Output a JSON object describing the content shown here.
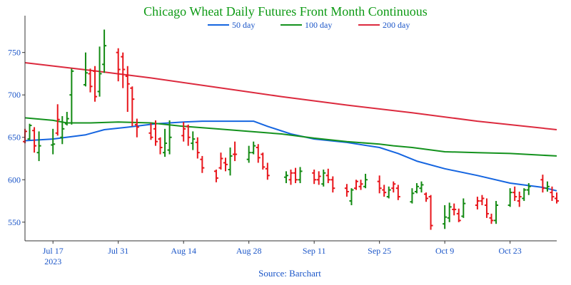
{
  "chart_data": {
    "type": "line",
    "title": "Chicago Wheat Daily Futures Front Month Continuous",
    "source": "Source: Barchart",
    "xlabel": "",
    "ylabel": "",
    "ylim": [
      528,
      785
    ],
    "yticks": [
      550,
      600,
      650,
      700,
      750
    ],
    "xlim": [
      "2023-07-11",
      "2023-11-02"
    ],
    "xticks": [
      {
        "date": "2023-07-17",
        "label": "Jul 17",
        "sublabel": "2023"
      },
      {
        "date": "2023-07-31",
        "label": "Jul 31"
      },
      {
        "date": "2023-08-14",
        "label": "Aug 14"
      },
      {
        "date": "2023-08-28",
        "label": "Aug 28"
      },
      {
        "date": "2023-09-11",
        "label": "Sep 11"
      },
      {
        "date": "2023-09-25",
        "label": "Sep 25"
      },
      {
        "date": "2023-10-09",
        "label": "Oct 9"
      },
      {
        "date": "2023-10-23",
        "label": "Oct 23"
      }
    ],
    "grid": false,
    "legend_position": "top-right",
    "up_color": "#138a13",
    "down_color": "#e8151b",
    "series": [
      {
        "name": "50 day",
        "color": "#1565e0",
        "points": [
          [
            "2023-07-11",
            646
          ],
          [
            "2023-07-17",
            648
          ],
          [
            "2023-07-24",
            653
          ],
          [
            "2023-07-28",
            659
          ],
          [
            "2023-08-02",
            662
          ],
          [
            "2023-08-08",
            666
          ],
          [
            "2023-08-14",
            668
          ],
          [
            "2023-08-18",
            669
          ],
          [
            "2023-08-25",
            669
          ],
          [
            "2023-08-29",
            669
          ],
          [
            "2023-09-01",
            663
          ],
          [
            "2023-09-06",
            654
          ],
          [
            "2023-09-11",
            648
          ],
          [
            "2023-09-18",
            644
          ],
          [
            "2023-09-25",
            638
          ],
          [
            "2023-09-29",
            631
          ],
          [
            "2023-10-03",
            622
          ],
          [
            "2023-10-09",
            613
          ],
          [
            "2023-10-16",
            605
          ],
          [
            "2023-10-23",
            596
          ],
          [
            "2023-10-30",
            591
          ],
          [
            "2023-11-02",
            587
          ]
        ]
      },
      {
        "name": "100 day",
        "color": "#14921e",
        "points": [
          [
            "2023-07-11",
            673
          ],
          [
            "2023-07-17",
            670
          ],
          [
            "2023-07-20",
            667
          ],
          [
            "2023-07-25",
            667
          ],
          [
            "2023-07-31",
            668
          ],
          [
            "2023-08-07",
            667
          ],
          [
            "2023-08-14",
            663
          ],
          [
            "2023-08-21",
            660
          ],
          [
            "2023-08-28",
            657
          ],
          [
            "2023-09-04",
            654
          ],
          [
            "2023-09-11",
            649
          ],
          [
            "2023-09-18",
            645
          ],
          [
            "2023-09-25",
            642
          ],
          [
            "2023-09-28",
            640
          ],
          [
            "2023-10-02",
            638
          ],
          [
            "2023-10-09",
            633
          ],
          [
            "2023-10-16",
            632
          ],
          [
            "2023-10-23",
            631
          ],
          [
            "2023-11-02",
            628
          ]
        ]
      },
      {
        "name": "200 day",
        "color": "#dc2a3e",
        "points": [
          [
            "2023-07-11",
            738
          ],
          [
            "2023-07-25",
            729
          ],
          [
            "2023-08-07",
            720
          ],
          [
            "2023-08-21",
            709
          ],
          [
            "2023-09-04",
            698
          ],
          [
            "2023-09-18",
            688
          ],
          [
            "2023-10-02",
            679
          ],
          [
            "2023-10-16",
            669
          ],
          [
            "2023-11-02",
            659
          ]
        ]
      }
    ],
    "ohlc": [
      {
        "date": "2023-07-11",
        "o": 645,
        "h": 660,
        "l": 643,
        "c": 657,
        "up": false
      },
      {
        "date": "2023-07-12",
        "o": 648,
        "h": 666,
        "l": 647,
        "c": 664,
        "up": true
      },
      {
        "date": "2023-07-13",
        "o": 658,
        "h": 662,
        "l": 632,
        "c": 640,
        "up": false
      },
      {
        "date": "2023-07-14",
        "o": 632,
        "h": 657,
        "l": 622,
        "c": 640,
        "up": true
      },
      {
        "date": "2023-07-17",
        "o": 641,
        "h": 660,
        "l": 630,
        "c": 642,
        "up": true
      },
      {
        "date": "2023-07-18",
        "o": 655,
        "h": 689,
        "l": 652,
        "c": 671,
        "up": false
      },
      {
        "date": "2023-07-19",
        "o": 650,
        "h": 675,
        "l": 642,
        "c": 660,
        "up": true
      },
      {
        "date": "2023-07-20",
        "o": 666,
        "h": 680,
        "l": 664,
        "c": 672,
        "up": true
      },
      {
        "date": "2023-07-21",
        "o": 700,
        "h": 731,
        "l": 665,
        "c": 728,
        "up": true
      },
      {
        "date": "2023-07-24",
        "o": 712,
        "h": 750,
        "l": 710,
        "c": 726,
        "up": true
      },
      {
        "date": "2023-07-25",
        "o": 725,
        "h": 731,
        "l": 703,
        "c": 710,
        "up": false
      },
      {
        "date": "2023-07-26",
        "o": 728,
        "h": 734,
        "l": 692,
        "c": 698,
        "up": false
      },
      {
        "date": "2023-07-27",
        "o": 704,
        "h": 757,
        "l": 698,
        "c": 725,
        "up": true
      },
      {
        "date": "2023-07-28",
        "o": 736,
        "h": 777,
        "l": 726,
        "c": 758,
        "up": true
      },
      {
        "date": "2023-07-31",
        "o": 750,
        "h": 755,
        "l": 716,
        "c": 730,
        "up": false
      },
      {
        "date": "2023-08-01",
        "o": 745,
        "h": 750,
        "l": 708,
        "c": 730,
        "up": false
      },
      {
        "date": "2023-08-02",
        "o": 722,
        "h": 734,
        "l": 680,
        "c": 713,
        "up": false
      },
      {
        "date": "2023-08-03",
        "o": 708,
        "h": 710,
        "l": 663,
        "c": 695,
        "up": false
      },
      {
        "date": "2023-08-04",
        "o": 665,
        "h": 672,
        "l": 650,
        "c": 662,
        "up": false
      },
      {
        "date": "2023-08-07",
        "o": 655,
        "h": 667,
        "l": 647,
        "c": 650,
        "up": false
      },
      {
        "date": "2023-08-08",
        "o": 660,
        "h": 670,
        "l": 640,
        "c": 645,
        "up": false
      },
      {
        "date": "2023-08-09",
        "o": 648,
        "h": 650,
        "l": 630,
        "c": 638,
        "up": false
      },
      {
        "date": "2023-08-10",
        "o": 632,
        "h": 660,
        "l": 627,
        "c": 643,
        "up": true
      },
      {
        "date": "2023-08-11",
        "o": 635,
        "h": 670,
        "l": 630,
        "c": 650,
        "up": true
      },
      {
        "date": "2023-08-14",
        "o": 652,
        "h": 668,
        "l": 645,
        "c": 660,
        "up": false
      },
      {
        "date": "2023-08-15",
        "o": 663,
        "h": 665,
        "l": 640,
        "c": 650,
        "up": false
      },
      {
        "date": "2023-08-16",
        "o": 643,
        "h": 657,
        "l": 635,
        "c": 648,
        "up": true
      },
      {
        "date": "2023-08-17",
        "o": 644,
        "h": 650,
        "l": 625,
        "c": 632,
        "up": false
      },
      {
        "date": "2023-08-18",
        "o": 624,
        "h": 628,
        "l": 608,
        "c": 614,
        "up": false
      },
      {
        "date": "2023-08-21",
        "o": 610,
        "h": 612,
        "l": 597,
        "c": 602,
        "up": false
      },
      {
        "date": "2023-08-22",
        "o": 614,
        "h": 632,
        "l": 612,
        "c": 625,
        "up": false
      },
      {
        "date": "2023-08-23",
        "o": 620,
        "h": 626,
        "l": 610,
        "c": 618,
        "up": false
      },
      {
        "date": "2023-08-24",
        "o": 612,
        "h": 638,
        "l": 605,
        "c": 628,
        "up": true
      },
      {
        "date": "2023-08-25",
        "o": 630,
        "h": 645,
        "l": 622,
        "c": 630,
        "up": false
      },
      {
        "date": "2023-08-28",
        "o": 624,
        "h": 640,
        "l": 620,
        "c": 632,
        "up": true
      },
      {
        "date": "2023-08-29",
        "o": 632,
        "h": 645,
        "l": 630,
        "c": 640,
        "up": true
      },
      {
        "date": "2023-08-30",
        "o": 638,
        "h": 642,
        "l": 620,
        "c": 626,
        "up": false
      },
      {
        "date": "2023-08-31",
        "o": 630,
        "h": 632,
        "l": 612,
        "c": 615,
        "up": false
      },
      {
        "date": "2023-09-01",
        "o": 613,
        "h": 620,
        "l": 600,
        "c": 605,
        "up": false
      },
      {
        "date": "2023-09-05",
        "o": 603,
        "h": 610,
        "l": 596,
        "c": 605,
        "up": true
      },
      {
        "date": "2023-09-06",
        "o": 600,
        "h": 612,
        "l": 594,
        "c": 608,
        "up": false
      },
      {
        "date": "2023-09-07",
        "o": 608,
        "h": 614,
        "l": 596,
        "c": 600,
        "up": false
      },
      {
        "date": "2023-09-08",
        "o": 600,
        "h": 615,
        "l": 596,
        "c": 610,
        "up": true
      },
      {
        "date": "2023-09-11",
        "o": 608,
        "h": 612,
        "l": 595,
        "c": 600,
        "up": false
      },
      {
        "date": "2023-09-12",
        "o": 600,
        "h": 610,
        "l": 594,
        "c": 604,
        "up": false
      },
      {
        "date": "2023-09-13",
        "o": 595,
        "h": 612,
        "l": 592,
        "c": 608,
        "up": true
      },
      {
        "date": "2023-09-14",
        "o": 605,
        "h": 613,
        "l": 596,
        "c": 600,
        "up": false
      },
      {
        "date": "2023-09-15",
        "o": 600,
        "h": 604,
        "l": 585,
        "c": 590,
        "up": false
      },
      {
        "date": "2023-09-18",
        "o": 590,
        "h": 595,
        "l": 580,
        "c": 586,
        "up": false
      },
      {
        "date": "2023-09-19",
        "o": 575,
        "h": 590,
        "l": 570,
        "c": 588,
        "up": true
      },
      {
        "date": "2023-09-20",
        "o": 590,
        "h": 600,
        "l": 588,
        "c": 598,
        "up": false
      },
      {
        "date": "2023-09-21",
        "o": 592,
        "h": 600,
        "l": 588,
        "c": 595,
        "up": false
      },
      {
        "date": "2023-09-22",
        "o": 592,
        "h": 607,
        "l": 590,
        "c": 600,
        "up": true
      },
      {
        "date": "2023-09-25",
        "o": 598,
        "h": 605,
        "l": 584,
        "c": 590,
        "up": false
      },
      {
        "date": "2023-09-26",
        "o": 588,
        "h": 594,
        "l": 580,
        "c": 585,
        "up": false
      },
      {
        "date": "2023-09-27",
        "o": 580,
        "h": 592,
        "l": 578,
        "c": 588,
        "up": true
      },
      {
        "date": "2023-09-28",
        "o": 590,
        "h": 598,
        "l": 585,
        "c": 595,
        "up": false
      },
      {
        "date": "2023-09-29",
        "o": 590,
        "h": 594,
        "l": 576,
        "c": 580,
        "up": false
      },
      {
        "date": "2023-10-02",
        "o": 574,
        "h": 590,
        "l": 572,
        "c": 584,
        "up": true
      },
      {
        "date": "2023-10-03",
        "o": 586,
        "h": 596,
        "l": 584,
        "c": 592,
        "up": true
      },
      {
        "date": "2023-10-04",
        "o": 590,
        "h": 598,
        "l": 585,
        "c": 594,
        "up": true
      },
      {
        "date": "2023-10-05",
        "o": 583,
        "h": 585,
        "l": 574,
        "c": 578,
        "up": false
      },
      {
        "date": "2023-10-06",
        "o": 580,
        "h": 582,
        "l": 541,
        "c": 546,
        "up": false
      },
      {
        "date": "2023-10-09",
        "o": 548,
        "h": 570,
        "l": 542,
        "c": 556,
        "up": true
      },
      {
        "date": "2023-10-10",
        "o": 555,
        "h": 573,
        "l": 550,
        "c": 568,
        "up": true
      },
      {
        "date": "2023-10-11",
        "o": 565,
        "h": 572,
        "l": 558,
        "c": 565,
        "up": false
      },
      {
        "date": "2023-10-12",
        "o": 560,
        "h": 566,
        "l": 550,
        "c": 552,
        "up": false
      },
      {
        "date": "2023-10-13",
        "o": 557,
        "h": 578,
        "l": 555,
        "c": 572,
        "up": true
      },
      {
        "date": "2023-10-16",
        "o": 570,
        "h": 580,
        "l": 565,
        "c": 575,
        "up": false
      },
      {
        "date": "2023-10-17",
        "o": 575,
        "h": 582,
        "l": 570,
        "c": 578,
        "up": false
      },
      {
        "date": "2023-10-18",
        "o": 570,
        "h": 578,
        "l": 555,
        "c": 560,
        "up": false
      },
      {
        "date": "2023-10-19",
        "o": 555,
        "h": 560,
        "l": 548,
        "c": 552,
        "up": false
      },
      {
        "date": "2023-10-20",
        "o": 552,
        "h": 575,
        "l": 548,
        "c": 570,
        "up": true
      },
      {
        "date": "2023-10-23",
        "o": 570,
        "h": 590,
        "l": 568,
        "c": 585,
        "up": true
      },
      {
        "date": "2023-10-24",
        "o": 585,
        "h": 592,
        "l": 575,
        "c": 580,
        "up": false
      },
      {
        "date": "2023-10-25",
        "o": 575,
        "h": 586,
        "l": 568,
        "c": 580,
        "up": false
      },
      {
        "date": "2023-10-26",
        "o": 578,
        "h": 590,
        "l": 575,
        "c": 588,
        "up": true
      },
      {
        "date": "2023-10-27",
        "o": 588,
        "h": 596,
        "l": 582,
        "c": 592,
        "up": true
      },
      {
        "date": "2023-10-30",
        "o": 600,
        "h": 606,
        "l": 585,
        "c": 590,
        "up": false
      },
      {
        "date": "2023-10-31",
        "o": 590,
        "h": 598,
        "l": 586,
        "c": 592,
        "up": true
      },
      {
        "date": "2023-11-01",
        "o": 585,
        "h": 592,
        "l": 575,
        "c": 580,
        "up": false
      },
      {
        "date": "2023-11-02",
        "o": 578,
        "h": 585,
        "l": 572,
        "c": 575,
        "up": false
      }
    ]
  }
}
